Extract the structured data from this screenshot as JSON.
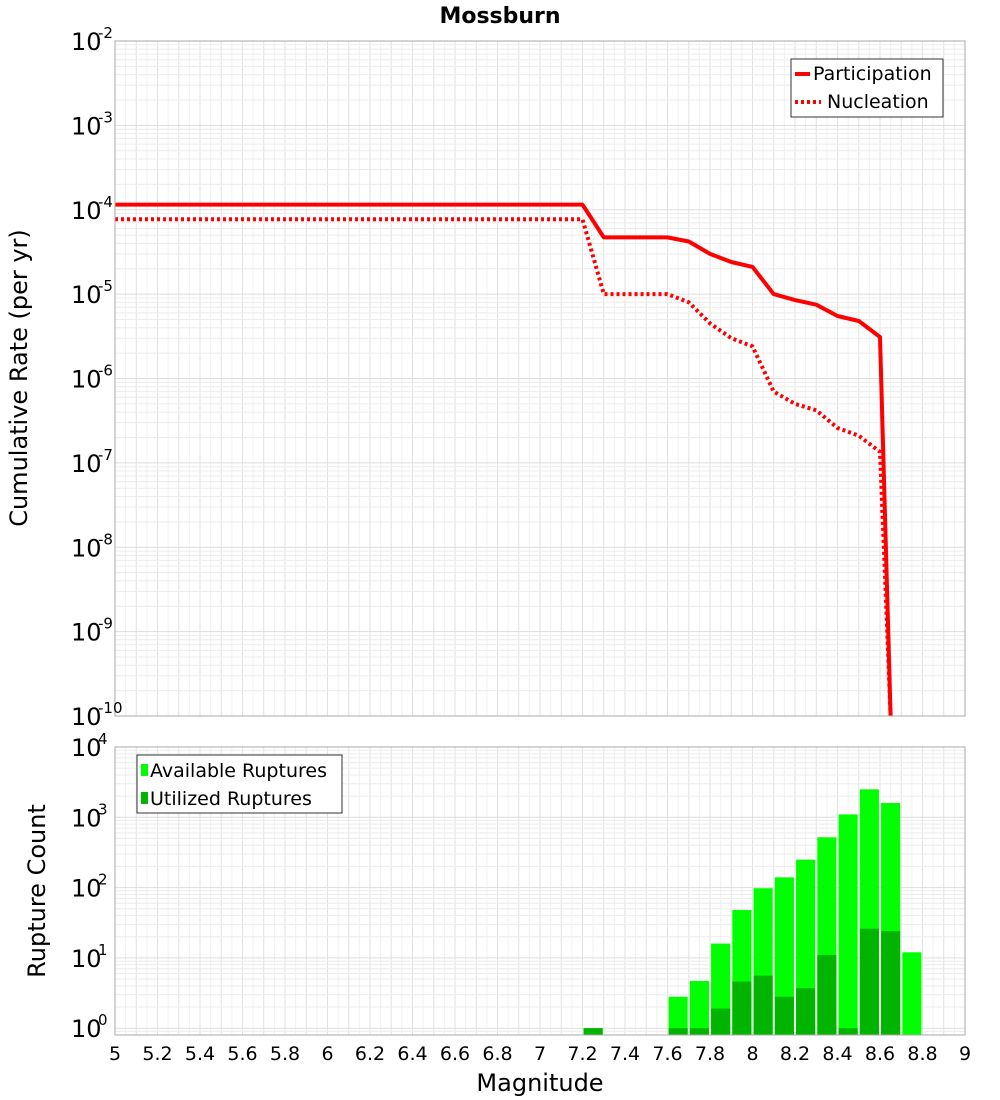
{
  "chart_data": [
    {
      "type": "line",
      "title": "Mossburn",
      "xlabel": "",
      "ylabel": "Cumulative Rate (per yr)",
      "yscale": "log",
      "xlim": [
        5,
        9
      ],
      "ylim": [
        1e-10,
        0.01
      ],
      "y_ticks": [
        {
          "base": "10",
          "exp": "-2"
        },
        {
          "base": "10",
          "exp": "-3"
        },
        {
          "base": "10",
          "exp": "-4"
        },
        {
          "base": "10",
          "exp": "-5"
        },
        {
          "base": "10",
          "exp": "-6"
        },
        {
          "base": "10",
          "exp": "-7"
        },
        {
          "base": "10",
          "exp": "-8"
        },
        {
          "base": "10",
          "exp": "-9"
        },
        {
          "base": "10",
          "exp": "-10"
        }
      ],
      "legend": {
        "position": "top-right"
      },
      "series": [
        {
          "name": "Participation",
          "style": "solid",
          "color": "#ff0000",
          "x": [
            5.0,
            7.2,
            7.3,
            7.4,
            7.5,
            7.6,
            7.7,
            7.8,
            7.9,
            8.0,
            8.1,
            8.2,
            8.3,
            8.4,
            8.5,
            8.6,
            8.65
          ],
          "y": [
            0.000115,
            0.000115,
            4.7e-05,
            4.7e-05,
            4.7e-05,
            4.7e-05,
            4.2e-05,
            3e-05,
            2.4e-05,
            2.1e-05,
            1e-05,
            8.5e-06,
            7.5e-06,
            5.5e-06,
            4.8e-06,
            3.1e-06,
            1e-10
          ]
        },
        {
          "name": "Nucleation",
          "style": "dotted",
          "color": "#ff0000",
          "x": [
            5.0,
            7.2,
            7.3,
            7.4,
            7.5,
            7.6,
            7.7,
            7.8,
            7.9,
            8.0,
            8.1,
            8.2,
            8.3,
            8.4,
            8.5,
            8.6,
            8.65
          ],
          "y": [
            7.7e-05,
            7.7e-05,
            1e-05,
            1e-05,
            1e-05,
            1e-05,
            8e-06,
            4.5e-06,
            3e-06,
            2.4e-06,
            7e-07,
            5e-07,
            4.2e-07,
            2.6e-07,
            2.1e-07,
            1.35e-07,
            1e-10
          ]
        }
      ]
    },
    {
      "type": "bar",
      "title": "",
      "xlabel": "Magnitude",
      "ylabel": "Rupture Count",
      "yscale": "log",
      "xlim": [
        5,
        9
      ],
      "ylim": [
        0.8,
        10000
      ],
      "x_ticks": [
        "5",
        "5.2",
        "5.4",
        "5.6",
        "5.8",
        "6",
        "6.2",
        "6.4",
        "6.6",
        "6.8",
        "7",
        "7.2",
        "7.4",
        "7.6",
        "7.8",
        "8",
        "8.2",
        "8.4",
        "8.6",
        "8.8",
        "9"
      ],
      "y_ticks": [
        {
          "base": "10",
          "exp": "4"
        },
        {
          "base": "10",
          "exp": "3"
        },
        {
          "base": "10",
          "exp": "2"
        },
        {
          "base": "10",
          "exp": "1"
        },
        {
          "base": "10",
          "exp": "0"
        }
      ],
      "legend": {
        "position": "top-left"
      },
      "bar_width": 0.09,
      "series": [
        {
          "name": "Available Ruptures",
          "color": "#00ff00",
          "x": [
            7.25,
            7.65,
            7.75,
            7.85,
            7.95,
            8.05,
            8.15,
            8.25,
            8.35,
            8.45,
            8.55,
            8.65,
            8.75
          ],
          "values": [
            1,
            2.8,
            4.7,
            16,
            48,
            98,
            140,
            250,
            520,
            1100,
            2500,
            1600,
            12
          ]
        },
        {
          "name": "Utilized Ruptures",
          "color": "#00b400",
          "x": [
            7.25,
            7.65,
            7.75,
            7.85,
            7.95,
            8.05,
            8.15,
            8.25,
            8.35,
            8.45,
            8.55,
            8.65
          ],
          "values": [
            1,
            1,
            1,
            1.9,
            4.6,
            5.6,
            2.8,
            3.7,
            11,
            1,
            26,
            24
          ]
        }
      ]
    }
  ]
}
